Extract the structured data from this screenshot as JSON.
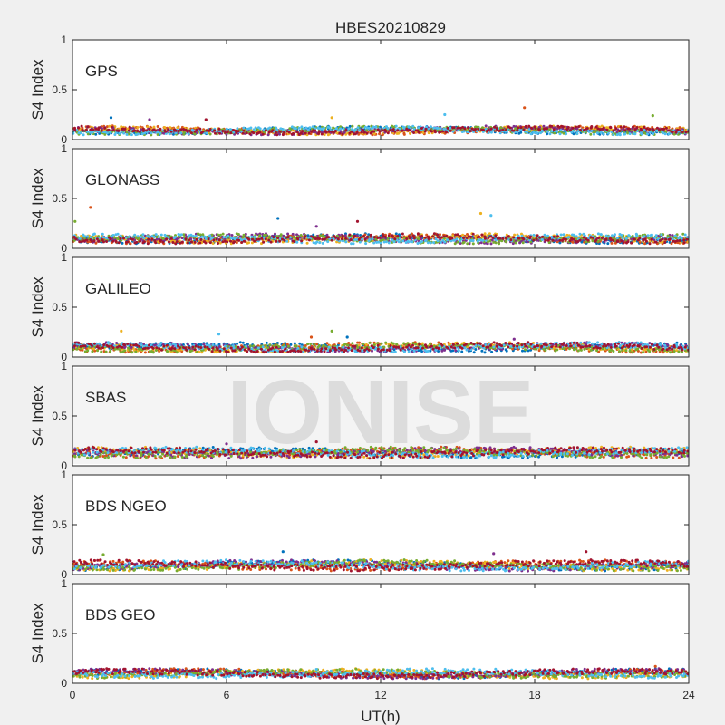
{
  "chart_data": {
    "type": "scatter",
    "title": "HBES20210829",
    "xlabel": "UT(h)",
    "ylabel": "S4 Index",
    "xlim": [
      0,
      24
    ],
    "ylim": [
      0,
      1
    ],
    "x_ticks": [
      0,
      6,
      12,
      18,
      24
    ],
    "y_ticks": [
      0,
      0.5,
      1
    ],
    "x_tick_labels": [
      "0",
      "6",
      "12",
      "18",
      "24"
    ],
    "y_tick_labels": [
      "0",
      "0.5",
      "1"
    ],
    "grid": false,
    "watermark": "IONISE",
    "colors": [
      "#0072bd",
      "#d95319",
      "#edb120",
      "#7e2f8e",
      "#77ac30",
      "#4dbeee",
      "#a2142f"
    ],
    "panels": [
      {
        "name": "GPS",
        "baseline_range": [
          0.05,
          0.13
        ],
        "points": [
          {
            "x": 1.5,
            "y": 0.22
          },
          {
            "x": 3.0,
            "y": 0.2
          },
          {
            "x": 5.2,
            "y": 0.2
          },
          {
            "x": 10.1,
            "y": 0.22
          },
          {
            "x": 14.5,
            "y": 0.25
          },
          {
            "x": 17.6,
            "y": 0.32
          },
          {
            "x": 22.6,
            "y": 0.24
          }
        ]
      },
      {
        "name": "GLONASS",
        "baseline_range": [
          0.05,
          0.14
        ],
        "points": [
          {
            "x": 0.7,
            "y": 0.41
          },
          {
            "x": 0.1,
            "y": 0.27
          },
          {
            "x": 8.0,
            "y": 0.3
          },
          {
            "x": 9.5,
            "y": 0.22
          },
          {
            "x": 11.1,
            "y": 0.27
          },
          {
            "x": 15.9,
            "y": 0.35
          },
          {
            "x": 16.3,
            "y": 0.33
          }
        ]
      },
      {
        "name": "GALILEO",
        "baseline_range": [
          0.05,
          0.14
        ],
        "points": [
          {
            "x": 1.9,
            "y": 0.26
          },
          {
            "x": 5.7,
            "y": 0.23
          },
          {
            "x": 9.3,
            "y": 0.2
          },
          {
            "x": 10.1,
            "y": 0.26
          },
          {
            "x": 10.7,
            "y": 0.2
          },
          {
            "x": 17.2,
            "y": 0.18
          }
        ]
      },
      {
        "name": "SBAS",
        "baseline_range": [
          0.08,
          0.18
        ],
        "points": [
          {
            "x": 6.0,
            "y": 0.22
          },
          {
            "x": 9.5,
            "y": 0.24
          }
        ]
      },
      {
        "name": "BDS NGEO",
        "baseline_range": [
          0.04,
          0.14
        ],
        "points": [
          {
            "x": 1.2,
            "y": 0.2
          },
          {
            "x": 8.2,
            "y": 0.23
          },
          {
            "x": 16.4,
            "y": 0.21
          },
          {
            "x": 20.0,
            "y": 0.23
          }
        ]
      },
      {
        "name": "BDS GEO",
        "baseline_range": [
          0.05,
          0.14
        ],
        "points": [
          {
            "x": 9.5,
            "y": 0.14
          },
          {
            "x": 22.7,
            "y": 0.17
          }
        ]
      }
    ]
  }
}
